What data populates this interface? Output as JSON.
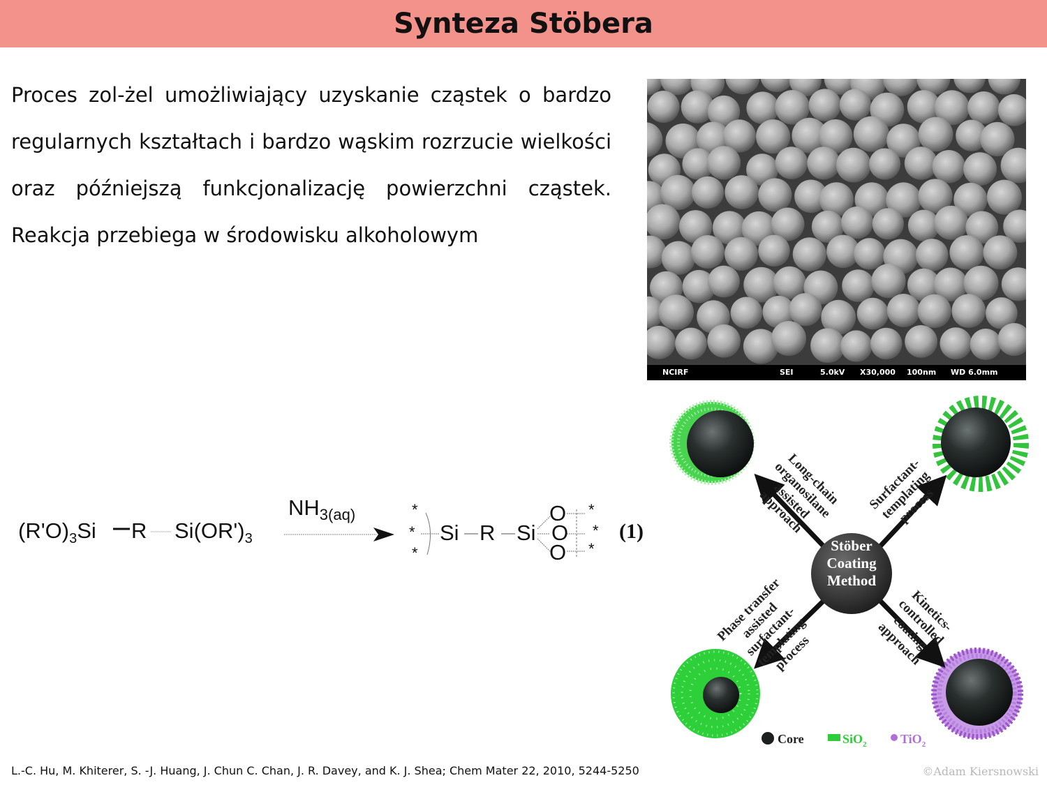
{
  "slide": {
    "title": "Synteza Stöbera",
    "body": "Proces zol-żel umożliwiający uzyskanie cząstek o bardzo regularnych kształtach i bardzo wąskim rozrzucie wielkości oraz późniejszą funkcjonalizację powierzchni cząstek. Reakcja przebiega w środowisku alkoholowym",
    "citation": "L.-C. Hu, M. Khiterer, S. -J. Huang, J. Chun C. Chan, J. R. Davey, and K.  J. Shea; Chem Mater 22, 2010, 5244-5250",
    "copyright": "©Adam Kiersnowski"
  },
  "sem_image": {
    "footer": [
      "NCIRF",
      "SEI",
      "5.0kV",
      "X30,000",
      "100nm",
      "WD 6.0mm"
    ]
  },
  "reaction": {
    "reactant_left": "(R'O)",
    "reactant_sub1": "3",
    "reactant_si": "Si",
    "reactant_r": "R",
    "reactant_right": "Si(OR')",
    "reactant_sub2": "3",
    "reagent": "NH",
    "reagent_sub": "3(aq)",
    "product_si1": "Si",
    "product_r": "R",
    "product_si2": "Si",
    "product_o": "O",
    "star": "*",
    "equation_number": "(1)"
  },
  "diagram": {
    "center": [
      "Stöber",
      "Coating",
      "Method"
    ],
    "top_left": [
      "Long-chain",
      "organosilane",
      "assisted",
      "approach"
    ],
    "top_right": [
      "Surfactant-",
      "templating",
      "process"
    ],
    "bottom_left": [
      "Phase transfer",
      "assisted",
      "surfactant-",
      "templating",
      "process"
    ],
    "bottom_right": [
      "Kinetics-",
      "controlled",
      "coating",
      "approach"
    ],
    "legend": {
      "core": "Core",
      "sio2": "SiO",
      "sio2_sub": "2",
      "tio2": "TiO",
      "tio2_sub": "2"
    },
    "colors": {
      "core": "#1c1f1f",
      "sio2": "#2ecc3a",
      "tio2": "#b06fd8"
    }
  }
}
